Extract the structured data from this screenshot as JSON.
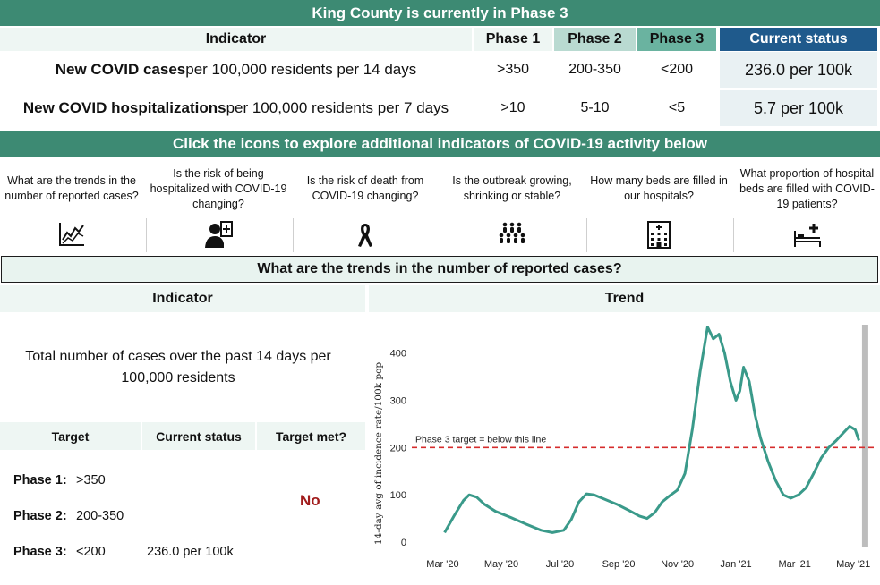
{
  "top_banner": "King County is currently in Phase 3",
  "table": {
    "headers": [
      "Indicator",
      "Phase 1",
      "Phase 2",
      "Phase 3",
      "Current status"
    ],
    "rows": [
      {
        "bold": "New COVID cases",
        "rest": " per 100,000 residents per 14 days",
        "p1": ">350",
        "p2": "200-350",
        "p3": "<200",
        "current": "236.0 per 100k"
      },
      {
        "bold": "New COVID hospitalizations",
        "rest": " per 100,000 residents per 7 days",
        "p1": ">10",
        "p2": "5-10",
        "p3": "<5",
        "current": "5.7 per 100k"
      }
    ]
  },
  "mid_banner": "Click the icons to explore additional indicators of COVID-19 activity below",
  "icon_questions": [
    {
      "text": "What are the trends in the number of reported cases?",
      "icon": "trend-chart-icon"
    },
    {
      "text": "Is the risk of being hospitalized with COVID-19 changing?",
      "icon": "patient-icon"
    },
    {
      "text": "Is the risk of death from COVID-19 changing?",
      "icon": "ribbon-icon"
    },
    {
      "text": "Is the outbreak growing, shrinking or stable?",
      "icon": "people-group-icon"
    },
    {
      "text": "How many beds are filled in our hospitals?",
      "icon": "hospital-building-icon"
    },
    {
      "text": "What proportion of hospital beds are filled with COVID-19 patients?",
      "icon": "hospital-bed-icon"
    }
  ],
  "trend_section_title": "What are the trends in the number of reported cases?",
  "left": {
    "header": "Indicator",
    "description": "Total number of cases over the past 14 days per 100,000 residents",
    "target_headers": [
      "Target",
      "Current status",
      "Target met?"
    ],
    "phases": [
      {
        "label": "Phase 1:",
        "value": ">350"
      },
      {
        "label": "Phase 2:",
        "value": "200-350"
      },
      {
        "label": "Phase 3:",
        "value": "<200"
      }
    ],
    "current_status": "236.0 per 100k",
    "target_met": "No"
  },
  "right": {
    "header": "Trend"
  },
  "colors": {
    "banner": "#3d8a73",
    "current_header": "#1f5a8c",
    "line": "#3a9a8a",
    "target_line": "#d62c2c",
    "met_no": "#a11c1c"
  },
  "chart_data": {
    "type": "line",
    "ylabel": "14-day avg of incidence rate/100k pop",
    "ylim": [
      0,
      460
    ],
    "yticks": [
      0,
      100,
      200,
      300,
      400
    ],
    "xticks": [
      "Mar '20",
      "May '20",
      "Jul '20",
      "Sep '20",
      "Nov '20",
      "Jan '21",
      "Mar '21",
      "May '21"
    ],
    "threshold": {
      "value": 200,
      "label": "Phase 3 target =  below this line"
    },
    "shaded_x": 7.2,
    "series": [
      {
        "points": [
          [
            0.25,
            20
          ],
          [
            0.5,
            55
          ],
          [
            0.75,
            88
          ],
          [
            0.9,
            100
          ],
          [
            1.1,
            95
          ],
          [
            1.3,
            80
          ],
          [
            1.6,
            65
          ],
          [
            2.0,
            52
          ],
          [
            2.4,
            38
          ],
          [
            2.8,
            25
          ],
          [
            3.1,
            20
          ],
          [
            3.4,
            25
          ],
          [
            3.6,
            48
          ],
          [
            3.8,
            85
          ],
          [
            4.0,
            102
          ],
          [
            4.2,
            100
          ],
          [
            4.5,
            90
          ],
          [
            4.8,
            80
          ],
          [
            5.1,
            68
          ],
          [
            5.4,
            55
          ],
          [
            5.6,
            50
          ],
          [
            5.8,
            62
          ],
          [
            6.0,
            85
          ],
          [
            6.2,
            98
          ],
          [
            6.4,
            110
          ],
          [
            6.6,
            145
          ],
          [
            6.8,
            240
          ],
          [
            7.0,
            360
          ],
          [
            7.2,
            455
          ],
          [
            7.35,
            430
          ],
          [
            7.5,
            440
          ],
          [
            7.65,
            400
          ],
          [
            7.8,
            340
          ],
          [
            7.95,
            300
          ],
          [
            8.05,
            320
          ],
          [
            8.15,
            370
          ],
          [
            8.3,
            340
          ],
          [
            8.45,
            270
          ],
          [
            8.6,
            220
          ],
          [
            8.8,
            170
          ],
          [
            9.0,
            130
          ],
          [
            9.2,
            100
          ],
          [
            9.4,
            93
          ],
          [
            9.6,
            100
          ],
          [
            9.8,
            115
          ],
          [
            10.0,
            145
          ],
          [
            10.2,
            178
          ],
          [
            10.4,
            200
          ],
          [
            10.6,
            215
          ],
          [
            10.8,
            232
          ],
          [
            10.95,
            245
          ],
          [
            11.1,
            238
          ],
          [
            11.2,
            215
          ]
        ]
      }
    ]
  }
}
